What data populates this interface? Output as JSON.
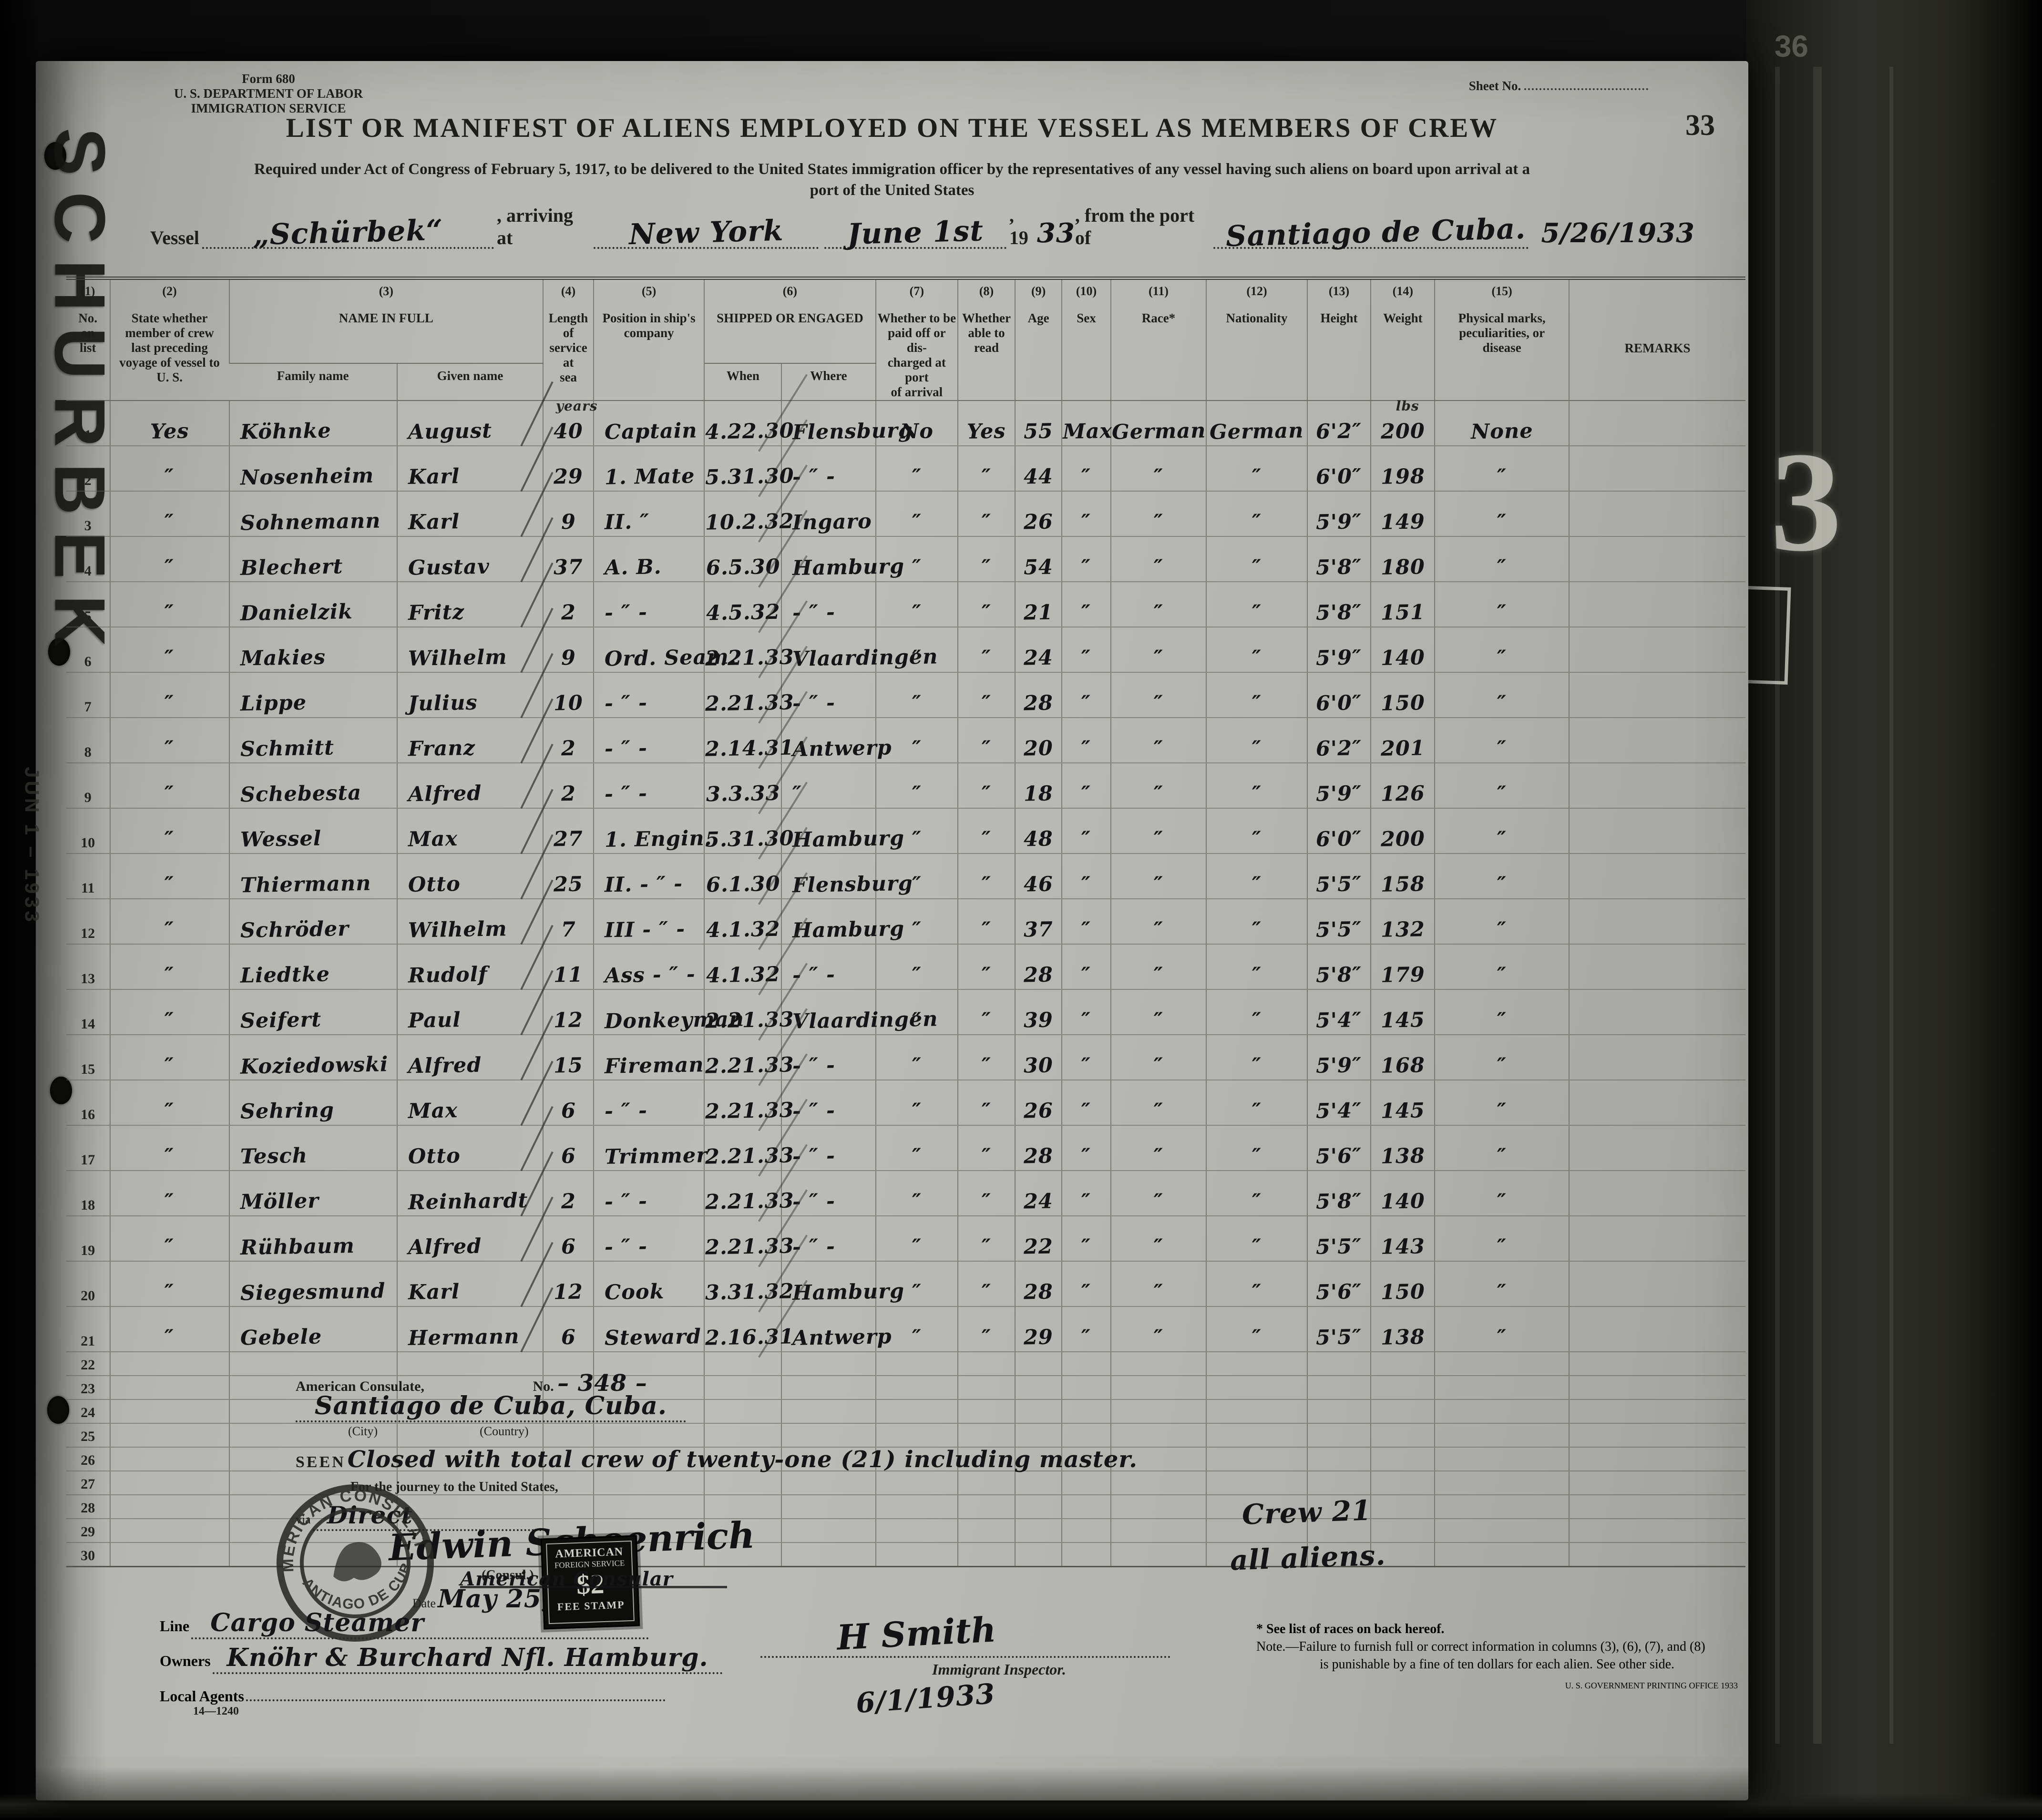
{
  "head": {
    "form_no": "Form 680",
    "dept": "U. S. DEPARTMENT OF LABOR",
    "service": "IMMIGRATION SERVICE",
    "sheet_label": "Sheet No.",
    "page_number": "33",
    "title": "LIST OR MANIFEST OF ALIENS EMPLOYED ON THE VESSEL AS MEMBERS OF CREW",
    "subtitle1": "Required under Act of Congress of February 5, 1917, to be delivered to the United States immigration officer by the representatives of any vessel having such aliens on board upon arrival at a",
    "subtitle2": "port of the United States"
  },
  "vessel": {
    "label": "Vessel",
    "name": "„Schürbek“",
    "arriving_label": ", arriving at",
    "port": "New York",
    "date": "June 1st",
    "year_label": ", 19",
    "year": "33",
    "from_label": ", from the port of",
    "from_port": "Santiago de Cuba.",
    "stamp_date": "5/26/1933"
  },
  "margins": {
    "side_label": "SCHURBEK",
    "date_stamp": "JUN 1 – 1933",
    "right_faint": "36",
    "right_big": "3"
  },
  "table": {
    "cols": {
      "c1_num": "(1)",
      "c1": "No.\non\nlist",
      "c2_num": "(2)",
      "c2": "State whether\nmember of crew\nlast preceding\nvoyage of vessel to\nU. S.",
      "c3_num": "(3)",
      "c3": "NAME IN FULL",
      "c3a": "Family name",
      "c3b": "Given name",
      "c4_num": "(4)",
      "c4": "Length\nof\nservice\nat\nsea",
      "c5_num": "(5)",
      "c5": "Position in ship's\ncompany",
      "c6_num": "(6)",
      "c6": "SHIPPED OR ENGAGED",
      "c6a": "When",
      "c6b": "Where",
      "c7_num": "(7)",
      "c7": "Whether to be\npaid off or dis-\ncharged at port\nof arrival",
      "c8_num": "(8)",
      "c8": "Whether\nable to\nread",
      "c9_num": "(9)",
      "c9": "Age",
      "c10_num": "(10)",
      "c10": "Sex",
      "c11_num": "(11)",
      "c11": "Race*",
      "c12_num": "(12)",
      "c12": "Nationality",
      "c13_num": "(13)",
      "c13": "Height",
      "c14_num": "(14)",
      "c14": "Weight",
      "c15_num": "(15)",
      "c15": "Physical marks,\npeculiarities, or\ndisease",
      "c16": "REMARKS"
    },
    "row1_notes": {
      "service": "years",
      "weight": "lbs"
    },
    "rows": [
      [
        "1",
        "Yes",
        "Köhnke",
        "August",
        "40",
        "Captain",
        "4.22.30",
        "Flensburg",
        "No",
        "Yes",
        "55",
        "Max",
        "German",
        "German",
        "6'2″",
        "200",
        "None",
        ""
      ],
      [
        "2",
        "″",
        "Nosenheim",
        "Karl",
        "29",
        "1. Mate",
        "5.31.30",
        "- ″ -",
        "″",
        "″",
        "44",
        "″",
        "″",
        "″",
        "6'0″",
        "198",
        "″",
        ""
      ],
      [
        "3",
        "″",
        "Sohnemann",
        "Karl",
        "9",
        "II. ″",
        "10.2.32",
        "Ingaro",
        "″",
        "″",
        "26",
        "″",
        "″",
        "″",
        "5'9″",
        "149",
        "″",
        ""
      ],
      [
        "4",
        "″",
        "Blechert",
        "Gustav",
        "37",
        "A. B.",
        "6.5.30",
        "Hamburg",
        "″",
        "″",
        "54",
        "″",
        "″",
        "″",
        "5'8″",
        "180",
        "″",
        ""
      ],
      [
        "5",
        "″",
        "Danielzik",
        "Fritz",
        "2",
        "- ″ -",
        "4.5.32",
        "- ″ -",
        "″",
        "″",
        "21",
        "″",
        "″",
        "″",
        "5'8″",
        "151",
        "″",
        ""
      ],
      [
        "6",
        "″",
        "Makies",
        "Wilhelm",
        "9",
        "Ord. Seam.",
        "2.21.33",
        "Vlaardingen",
        "″",
        "″",
        "24",
        "″",
        "″",
        "″",
        "5'9″",
        "140",
        "″",
        ""
      ],
      [
        "7",
        "″",
        "Lippe",
        "Julius",
        "10",
        "- ″ -",
        "2.21.33",
        "- ″ -",
        "″",
        "″",
        "28",
        "″",
        "″",
        "″",
        "6'0″",
        "150",
        "″",
        ""
      ],
      [
        "8",
        "″",
        "Schmitt",
        "Franz",
        "2",
        "- ″ -",
        "2.14.31",
        "Antwerp",
        "″",
        "″",
        "20",
        "″",
        "″",
        "″",
        "6'2″",
        "201",
        "″",
        ""
      ],
      [
        "9",
        "″",
        "Schebesta",
        "Alfred",
        "2",
        "- ″ -",
        "3.3.33",
        "″",
        "″",
        "″",
        "18",
        "″",
        "″",
        "″",
        "5'9″",
        "126",
        "″",
        ""
      ],
      [
        "10",
        "″",
        "Wessel",
        "Max",
        "27",
        "1. Engin.",
        "5.31.30",
        "Hamburg",
        "″",
        "″",
        "48",
        "″",
        "″",
        "″",
        "6'0″",
        "200",
        "″",
        ""
      ],
      [
        "11",
        "″",
        "Thiermann",
        "Otto",
        "25",
        "II. - ″ -",
        "6.1.30",
        "Flensburg",
        "″",
        "″",
        "46",
        "″",
        "″",
        "″",
        "5'5″",
        "158",
        "″",
        ""
      ],
      [
        "12",
        "″",
        "Schröder",
        "Wilhelm",
        "7",
        "III - ″ -",
        "4.1.32",
        "Hamburg",
        "″",
        "″",
        "37",
        "″",
        "″",
        "″",
        "5'5″",
        "132",
        "″",
        ""
      ],
      [
        "13",
        "″",
        "Liedtke",
        "Rudolf",
        "11",
        "Ass - ″ -",
        "4.1.32",
        "- ″ -",
        "″",
        "″",
        "28",
        "″",
        "″",
        "″",
        "5'8″",
        "179",
        "″",
        ""
      ],
      [
        "14",
        "″",
        "Seifert",
        "Paul",
        "12",
        "Donkeyman",
        "2.21.33",
        "Vlaardingen",
        "″",
        "″",
        "39",
        "″",
        "″",
        "″",
        "5'4″",
        "145",
        "″",
        ""
      ],
      [
        "15",
        "″",
        "Koziedowski",
        "Alfred",
        "15",
        "Fireman",
        "2.21.33",
        "- ″ -",
        "″",
        "″",
        "30",
        "″",
        "″",
        "″",
        "5'9″",
        "168",
        "″",
        ""
      ],
      [
        "16",
        "″",
        "Sehring",
        "Max",
        "6",
        "- ″ -",
        "2.21.33",
        "- ″ -",
        "″",
        "″",
        "26",
        "″",
        "″",
        "″",
        "5'4″",
        "145",
        "″",
        ""
      ],
      [
        "17",
        "″",
        "Tesch",
        "Otto",
        "6",
        "Trimmer",
        "2.21.33",
        "- ″ -",
        "″",
        "″",
        "28",
        "″",
        "″",
        "″",
        "5'6″",
        "138",
        "″",
        ""
      ],
      [
        "18",
        "″",
        "Möller",
        "Reinhardt",
        "2",
        "- ″ -",
        "2.21.33",
        "- ″ -",
        "″",
        "″",
        "24",
        "″",
        "″",
        "″",
        "5'8″",
        "140",
        "″",
        ""
      ],
      [
        "19",
        "″",
        "Rühbaum",
        "Alfred",
        "6",
        "- ″ -",
        "2.21.33",
        "- ″ -",
        "″",
        "″",
        "22",
        "″",
        "″",
        "″",
        "5'5″",
        "143",
        "″",
        ""
      ],
      [
        "20",
        "″",
        "Siegesmund",
        "Karl",
        "12",
        "Cook",
        "3.31.32",
        "Hamburg",
        "″",
        "″",
        "28",
        "″",
        "″",
        "″",
        "5'6″",
        "150",
        "″",
        ""
      ],
      [
        "21",
        "″",
        "Gebele",
        "Hermann",
        "6",
        "Steward",
        "2.16.31",
        "Antwerp",
        "″",
        "″",
        "29",
        "″",
        "″",
        "″",
        "5'5″",
        "138",
        "″",
        ""
      ],
      [
        "22",
        "",
        "",
        "",
        "",
        "",
        "",
        "",
        "",
        "",
        "",
        "",
        "",
        "",
        "",
        "",
        "",
        ""
      ],
      [
        "23",
        "",
        "",
        "",
        "",
        "",
        "",
        "",
        "",
        "",
        "",
        "",
        "",
        "",
        "",
        "",
        "",
        ""
      ],
      [
        "24",
        "",
        "",
        "",
        "",
        "",
        "",
        "",
        "",
        "",
        "",
        "",
        "",
        "",
        "",
        "",
        "",
        ""
      ],
      [
        "25",
        "",
        "",
        "",
        "",
        "",
        "",
        "",
        "",
        "",
        "",
        "",
        "",
        "",
        "",
        "",
        "",
        ""
      ],
      [
        "26",
        "",
        "",
        "",
        "",
        "",
        "",
        "",
        "",
        "",
        "",
        "",
        "",
        "",
        "",
        "",
        "",
        ""
      ],
      [
        "27",
        "",
        "",
        "",
        "",
        "",
        "",
        "",
        "",
        "",
        "",
        "",
        "",
        "",
        "",
        "",
        "",
        ""
      ],
      [
        "28",
        "",
        "",
        "",
        "",
        "",
        "",
        "",
        "",
        "",
        "",
        "",
        "",
        "",
        "",
        "",
        "",
        ""
      ],
      [
        "29",
        "",
        "",
        "",
        "",
        "",
        "",
        "",
        "",
        "",
        "",
        "",
        "",
        "",
        "",
        "",
        "",
        ""
      ],
      [
        "30",
        "",
        "",
        "",
        "",
        "",
        "",
        "",
        "",
        "",
        "",
        "",
        "",
        "",
        "",
        "",
        "",
        ""
      ]
    ]
  },
  "consulate": {
    "header": "American Consulate,",
    "no_label": "No.",
    "no_value": "– 348 –",
    "place": "Santiago de Cuba, Cuba.",
    "city_label": "(City)",
    "country_label": "(Country)",
    "seen_label": "SEEN",
    "seen_text": "Closed with total crew of twenty-one (21) including master.",
    "journey_label": "For the journey to the United States,",
    "via_label": "via",
    "via_value": "Direct",
    "signature": "Edwin Schoenrich",
    "consul_label": "(Consul.)",
    "date_label": "Date",
    "date_value": "May 25, 1933"
  },
  "seal": {
    "arc_top": "AMERICAN CONSULATE",
    "arc_bottom": "SANTIAGO DE CUBA"
  },
  "fee_stamp": {
    "line1": "AMERICAN",
    "line2": "FOREIGN SERVICE",
    "value": "$2",
    "line3": "FEE STAMP",
    "cancel": "American Consular"
  },
  "crew_note": {
    "line1": "Crew 21",
    "line2": "all aliens."
  },
  "footer": {
    "line_label": "Line",
    "line_value": "Cargo Steamer",
    "owners_label": "Owners",
    "owners_value": "Knöhr & Burchard Nfl. Hamburg.",
    "agents_label": "Local Agents",
    "form_code": "14—1240",
    "inspector_sig": "H Smith",
    "inspector_title": "Immigrant Inspector.",
    "inspector_date": "6/1/1933",
    "note1": "* See list of races on back hereof.",
    "note2": "Note.—Failure to furnish full or correct information in columns (3), (6), (7), and (8)",
    "note3": "is punishable by a fine of ten dollars for each alien.  See other side.",
    "gpo": "U. S. GOVERNMENT PRINTING OFFICE  1933"
  }
}
